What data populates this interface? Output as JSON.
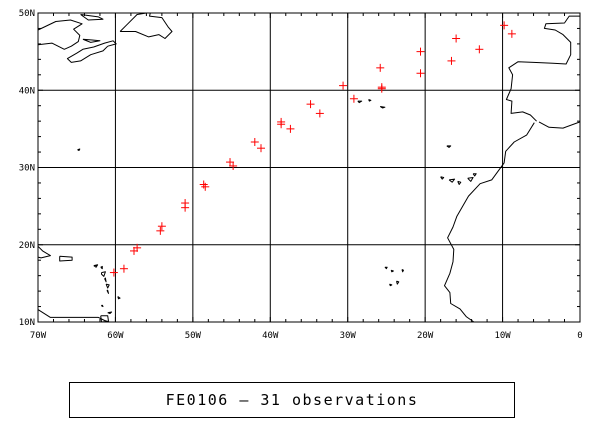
{
  "map": {
    "lon_range": [
      -70,
      0
    ],
    "lat_range": [
      10,
      50
    ],
    "lon_ticks": [
      -70,
      -60,
      -50,
      -40,
      -30,
      -20,
      -10,
      0
    ],
    "lat_ticks": [
      10,
      20,
      30,
      40,
      50
    ],
    "lon_labels": [
      "70W",
      "60W",
      "50W",
      "40W",
      "30W",
      "20W",
      "10W",
      "0"
    ],
    "lat_labels": [
      "10N",
      "20N",
      "30N",
      "40N",
      "50N"
    ],
    "grid": true,
    "marker_symbol": "+",
    "marker_color": "#ff0000",
    "coast_color": "#000000"
  },
  "chart_data": {
    "type": "scatter",
    "series": [
      {
        "points": [
          [
            -60.2,
            16.4
          ],
          [
            -58.9,
            16.9
          ],
          [
            -57.6,
            19.2
          ],
          [
            -57.2,
            19.6
          ],
          [
            -54.2,
            21.8
          ],
          [
            -54.0,
            22.4
          ],
          [
            -51.0,
            24.8
          ],
          [
            -51.0,
            25.4
          ],
          [
            -48.6,
            27.8
          ],
          [
            -48.4,
            27.5
          ],
          [
            -45.2,
            30.7
          ],
          [
            -44.8,
            30.2
          ],
          [
            -42.0,
            33.3
          ],
          [
            -41.2,
            32.5
          ],
          [
            -38.6,
            35.9
          ],
          [
            -37.4,
            35.0
          ],
          [
            -34.8,
            38.2
          ],
          [
            -33.6,
            37.0
          ],
          [
            -30.6,
            40.6
          ],
          [
            -29.2,
            38.9
          ],
          [
            -25.8,
            42.9
          ],
          [
            -25.6,
            40.2
          ],
          [
            -25.6,
            40.4
          ],
          [
            -20.6,
            45.0
          ],
          [
            -20.6,
            42.2
          ],
          [
            -16.6,
            43.8
          ],
          [
            -16.0,
            46.7
          ],
          [
            -13.0,
            45.3
          ],
          [
            -9.8,
            48.4
          ],
          [
            -8.8,
            47.3
          ],
          [
            -38.6,
            35.6
          ]
        ]
      }
    ]
  },
  "caption": "FE0106 — 31 observations"
}
